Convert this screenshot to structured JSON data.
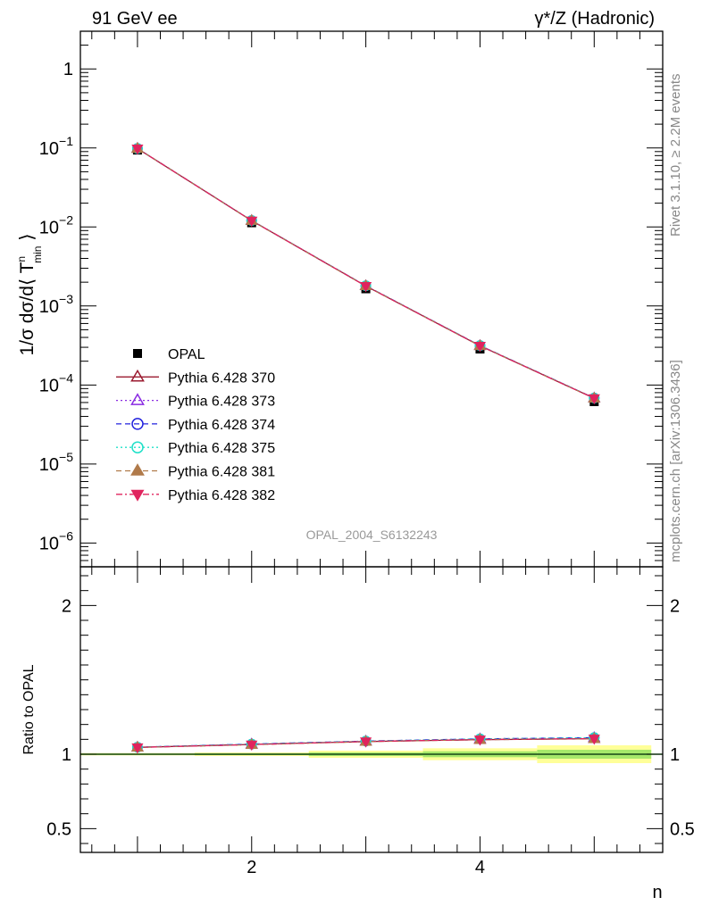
{
  "header": {
    "left": "91 GeV ee",
    "right": "γ*/Z (Hadronic)"
  },
  "side_labels": {
    "rivet": "Rivet 3.1.10, ≥ 2.2M events",
    "mcplots": "mcplots.cern.ch [arXiv:1306.3436]"
  },
  "watermark": "OPAL_2004_S6132243",
  "colors": {
    "data": "#000000",
    "p370": "#9b1b30",
    "p373": "#8a2be2",
    "p374": "#2222dd",
    "p375": "#1fe0c8",
    "p381": "#b07a4a",
    "p382": "#e0245e",
    "band_inner": "#a6e86a",
    "band_outer": "#ffff99",
    "ref_line": "#2a8a2a"
  },
  "legend": [
    {
      "label": "OPAL",
      "color": "#000000",
      "marker": "square",
      "dash": "none"
    },
    {
      "label": "Pythia 6.428 370",
      "color": "#9b1b30",
      "marker": "triangle-up-open",
      "dash": "solid"
    },
    {
      "label": "Pythia 6.428 373",
      "color": "#8a2be2",
      "marker": "triangle-up-open",
      "dash": "dotted"
    },
    {
      "label": "Pythia 6.428 374",
      "color": "#2222dd",
      "marker": "circle-open",
      "dash": "dashed"
    },
    {
      "label": "Pythia 6.428 375",
      "color": "#1fe0c8",
      "marker": "circle-open",
      "dash": "dotted"
    },
    {
      "label": "Pythia 6.428 381",
      "color": "#b07a4a",
      "marker": "triangle-up",
      "dash": "dashed"
    },
    {
      "label": "Pythia 6.428 382",
      "color": "#e0245e",
      "marker": "triangle-down",
      "dash": "dashdot"
    }
  ],
  "chart_data": [
    {
      "type": "scatter",
      "panel": "main",
      "ylabel_parts": {
        "prefix": "1/σ dσ/d⟨ T",
        "sup": "n",
        "sub": "min",
        "suffix": " ⟩"
      },
      "log_y": true,
      "ylim": [
        5e-07,
        3
      ],
      "xlim": [
        0.5,
        5.6
      ],
      "y_tick_labels": [
        {
          "value": 1,
          "base": "1",
          "exp": ""
        },
        {
          "value": 0.1,
          "base": "10",
          "exp": "−1"
        },
        {
          "value": 0.01,
          "base": "10",
          "exp": "−2"
        },
        {
          "value": 0.001,
          "base": "10",
          "exp": "−3"
        },
        {
          "value": 0.0001,
          "base": "10",
          "exp": "−4"
        },
        {
          "value": 1e-05,
          "base": "10",
          "exp": "−5"
        },
        {
          "value": 1e-06,
          "base": "10",
          "exp": "−6"
        }
      ],
      "x": [
        1,
        2,
        3,
        4,
        5
      ],
      "series": [
        {
          "name": "OPAL",
          "values": [
            0.094,
            0.0113,
            0.00165,
            0.000285,
            6.15e-05
          ]
        },
        {
          "name": "Pythia 6.428 370",
          "values": [
            0.0983,
            0.01203,
            0.00179,
            0.000313,
            6.79e-05
          ]
        },
        {
          "name": "Pythia 6.428 373",
          "values": [
            0.0984,
            0.01205,
            0.0018,
            0.000315,
            6.83e-05
          ]
        },
        {
          "name": "Pythia 6.428 374",
          "values": [
            0.0984,
            0.01205,
            0.0018,
            0.000315,
            6.83e-05
          ]
        },
        {
          "name": "Pythia 6.428 375",
          "values": [
            0.0984,
            0.01205,
            0.0018,
            0.000315,
            6.83e-05
          ]
        },
        {
          "name": "Pythia 6.428 381",
          "values": [
            0.0983,
            0.01202,
            0.00179,
            0.000313,
            6.79e-05
          ]
        },
        {
          "name": "Pythia 6.428 382",
          "values": [
            0.0983,
            0.01203,
            0.00179,
            0.000313,
            6.79e-05
          ]
        }
      ]
    },
    {
      "type": "scatter",
      "panel": "ratio",
      "ylabel": "Ratio to OPAL",
      "xlabel": "n",
      "ylim": [
        0.34,
        2.26
      ],
      "xlim": [
        0.5,
        5.6
      ],
      "y_tick_labels": [
        "0.5",
        "1",
        "2"
      ],
      "x_tick_labels": [
        "2",
        "4"
      ],
      "x": [
        1,
        2,
        3,
        4,
        5
      ],
      "bands": [
        {
          "x_range": [
            0.5,
            1.5
          ],
          "inner": 0.004,
          "outer": 0.008
        },
        {
          "x_range": [
            1.5,
            2.5
          ],
          "inner": 0.006,
          "outer": 0.012
        },
        {
          "x_range": [
            2.5,
            3.5
          ],
          "inner": 0.012,
          "outer": 0.024
        },
        {
          "x_range": [
            3.5,
            4.5
          ],
          "inner": 0.02,
          "outer": 0.04
        },
        {
          "x_range": [
            4.5,
            5.5
          ],
          "inner": 0.03,
          "outer": 0.06
        }
      ],
      "series": [
        {
          "name": "Pythia 6.428 370",
          "values": [
            1.046,
            1.066,
            1.085,
            1.098,
            1.104
          ]
        },
        {
          "name": "Pythia 6.428 373",
          "values": [
            1.047,
            1.068,
            1.088,
            1.103,
            1.111
          ]
        },
        {
          "name": "Pythia 6.428 374",
          "values": [
            1.047,
            1.068,
            1.088,
            1.103,
            1.111
          ]
        },
        {
          "name": "Pythia 6.428 375",
          "values": [
            1.047,
            1.068,
            1.088,
            1.103,
            1.111
          ]
        },
        {
          "name": "Pythia 6.428 381",
          "values": [
            1.046,
            1.064,
            1.085,
            1.098,
            1.104
          ]
        },
        {
          "name": "Pythia 6.428 382",
          "values": [
            1.046,
            1.065,
            1.086,
            1.099,
            1.105
          ]
        }
      ]
    }
  ]
}
